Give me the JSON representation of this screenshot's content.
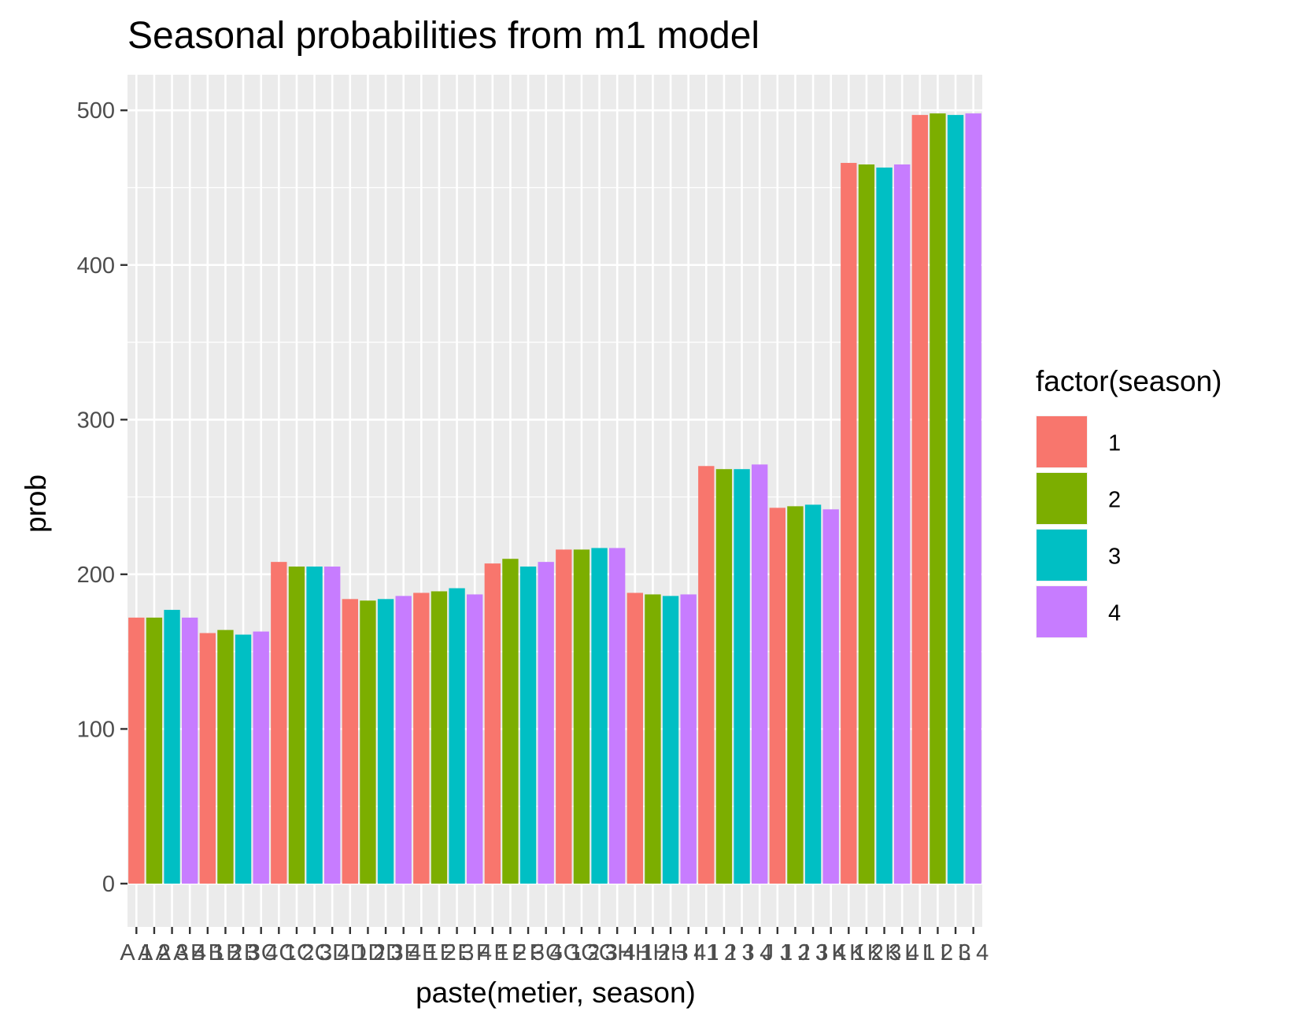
{
  "chart_data": {
    "type": "bar",
    "title": "Seasonal probabilities from m1 model",
    "xlabel": "paste(metier, season)",
    "ylabel": "prob",
    "ylim": [
      -28,
      523
    ],
    "yticks": [
      0,
      100,
      200,
      300,
      400,
      500
    ],
    "grid": true,
    "legend": {
      "title": "factor(season)",
      "position": "right",
      "entries": [
        "1",
        "2",
        "3",
        "4"
      ]
    },
    "colors": {
      "1": "#F8766D",
      "2": "#7CAE00",
      "3": "#00BFC4",
      "4": "#C77CFF"
    },
    "categories": [
      "A 1",
      "A 2",
      "A 3",
      "A 4",
      "B 1",
      "B 2",
      "B 3",
      "B 4",
      "C 1",
      "C 2",
      "C 3",
      "C 4",
      "D 1",
      "D 2",
      "D 3",
      "D 4",
      "E 1",
      "E 2",
      "E 3",
      "E 4",
      "F 1",
      "F 2",
      "F 3",
      "F 4",
      "G 1",
      "G 2",
      "G 3",
      "G 4",
      "H 1",
      "H 2",
      "H 3",
      "H 4",
      "I 1",
      "I 2",
      "I 3",
      "I 4",
      "J 1",
      "J 2",
      "J 3",
      "J 4",
      "K 1",
      "K 2",
      "K 3",
      "K 4",
      "L 1",
      "L 2",
      "L 3",
      "L 4"
    ],
    "seasons": [
      "1",
      "2",
      "3",
      "4",
      "1",
      "2",
      "3",
      "4",
      "1",
      "2",
      "3",
      "4",
      "1",
      "2",
      "3",
      "4",
      "1",
      "2",
      "3",
      "4",
      "1",
      "2",
      "3",
      "4",
      "1",
      "2",
      "3",
      "4",
      "1",
      "2",
      "3",
      "4",
      "1",
      "2",
      "3",
      "4",
      "1",
      "2",
      "3",
      "4",
      "1",
      "2",
      "3",
      "4",
      "1",
      "2",
      "3",
      "4"
    ],
    "values": [
      172,
      172,
      177,
      172,
      162,
      164,
      161,
      163,
      208,
      205,
      205,
      205,
      184,
      183,
      184,
      186,
      188,
      189,
      191,
      187,
      207,
      210,
      205,
      208,
      216,
      216,
      217,
      217,
      188,
      187,
      186,
      187,
      270,
      268,
      268,
      271,
      243,
      244,
      245,
      242,
      466,
      465,
      463,
      465,
      497,
      498,
      497,
      498
    ]
  }
}
